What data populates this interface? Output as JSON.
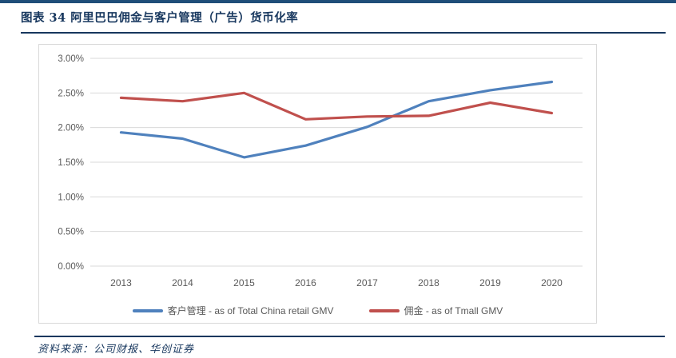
{
  "header": {
    "figure_label": "图表 34  阿里巴巴佣金与客户管理（广告）货币化率"
  },
  "chart_data": {
    "type": "line",
    "title": "阿里巴巴佣金与客户管理（广告）货币化率",
    "categories": [
      "2013",
      "2014",
      "2015",
      "2016",
      "2017",
      "2018",
      "2019",
      "2020"
    ],
    "series": [
      {
        "name": "客户管理 - as of Total China retail GMV",
        "color": "#4F81BD",
        "values": [
          1.93,
          1.84,
          1.57,
          1.74,
          2.01,
          2.38,
          2.54,
          2.66
        ]
      },
      {
        "name": "佣金 - as of Tmall GMV",
        "color": "#C0504D",
        "values": [
          2.43,
          2.38,
          2.5,
          2.12,
          2.16,
          2.17,
          2.36,
          2.21
        ]
      }
    ],
    "xlabel": "",
    "ylabel": "",
    "ylim": [
      0,
      3
    ],
    "ytick_step": 0.5,
    "ytick_labels": [
      "0.00%",
      "0.50%",
      "1.00%",
      "1.50%",
      "2.00%",
      "2.50%",
      "3.00%"
    ],
    "grid": true,
    "legend_position": "bottom"
  },
  "footer": {
    "source": "资料来源：公司财报、华创证券"
  },
  "colors": {
    "accent_navy": "#17375E",
    "top_bar": "#1F4E79",
    "grid_line": "#D9D9D9",
    "axis_text": "#595959",
    "series_blue": "#4F81BD",
    "series_red": "#C0504D"
  }
}
